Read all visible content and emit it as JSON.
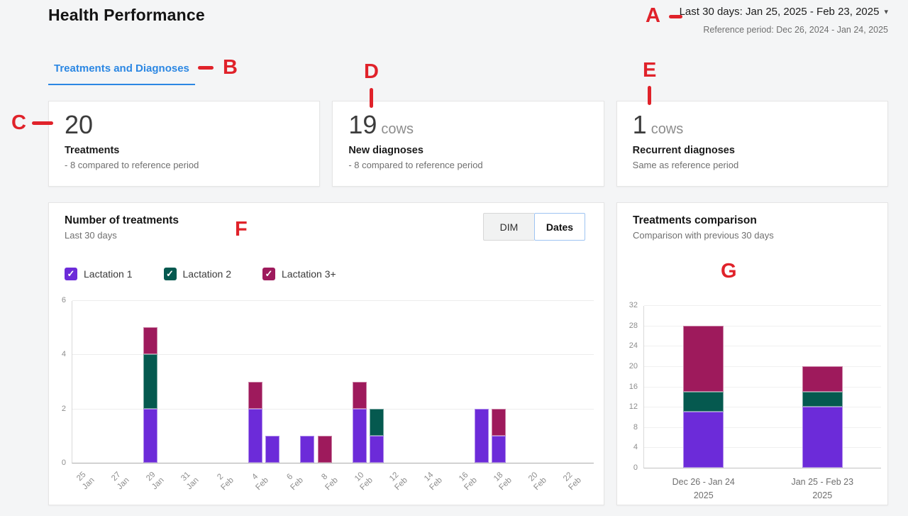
{
  "page": {
    "title": "Health Performance",
    "background": "#f4f5f6"
  },
  "header": {
    "period_selector_label": "Last 30 days: Jan 25, 2025 - Feb 23, 2025",
    "caret_icon": "▾",
    "reference_period_label": "Reference period: Dec 26, 2024 - Jan 24, 2025"
  },
  "tabs": [
    {
      "label": "Treatments and Diagnoses",
      "active": true
    }
  ],
  "kpi_cards": [
    {
      "value": "20",
      "unit": "",
      "label": "Treatments",
      "comparison": "- 8 compared to reference period"
    },
    {
      "value": "19",
      "unit": "cows",
      "label": "New diagnoses",
      "comparison": "- 8 compared to reference period"
    },
    {
      "value": "1",
      "unit": "cows",
      "label": "Recurrent diagnoses",
      "comparison": "Same as reference period"
    }
  ],
  "treatments_panel": {
    "title": "Number of treatments",
    "subtitle": "Last 30 days",
    "toggle_options": [
      {
        "label": "DIM",
        "selected": false
      },
      {
        "label": "Dates",
        "selected": true
      }
    ],
    "legend": [
      {
        "label": "Lactation 1",
        "color": "#6c2bd9",
        "checked": true,
        "check_glyph": "✓"
      },
      {
        "label": "Lactation 2",
        "color": "#05594f",
        "checked": true,
        "check_glyph": "✓"
      },
      {
        "label": "Lactation 3+",
        "color": "#9e1a5c",
        "checked": true,
        "check_glyph": "✓"
      }
    ]
  },
  "comparison_panel": {
    "title": "Treatments comparison",
    "subtitle": "Comparison with previous 30 days"
  },
  "annotations": {
    "color": "#e0222a",
    "items": [
      {
        "letter": "A"
      },
      {
        "letter": "B"
      },
      {
        "letter": "C"
      },
      {
        "letter": "D"
      },
      {
        "letter": "E"
      },
      {
        "letter": "F"
      },
      {
        "letter": "G"
      }
    ]
  },
  "chart_data": [
    {
      "type": "bar",
      "stacked": true,
      "title": "Number of treatments",
      "subtitle": "Last 30 days",
      "series_names": [
        "Lactation 1",
        "Lactation 2",
        "Lactation 3+"
      ],
      "colors": [
        "#6c2bd9",
        "#05594f",
        "#9e1a5c"
      ],
      "x_start": "25 Jan",
      "x_end": "23 Feb",
      "days_span": 30,
      "ylim": [
        0,
        6
      ],
      "y_ticks": [
        0,
        2,
        4,
        6
      ],
      "grid": true,
      "x_tick_labels": [
        {
          "day": "25",
          "month": "Jan",
          "day_index": 0
        },
        {
          "day": "27",
          "month": "Jan",
          "day_index": 2
        },
        {
          "day": "29",
          "month": "Jan",
          "day_index": 4
        },
        {
          "day": "31",
          "month": "Jan",
          "day_index": 6
        },
        {
          "day": "2",
          "month": "Feb",
          "day_index": 8
        },
        {
          "day": "4",
          "month": "Feb",
          "day_index": 10
        },
        {
          "day": "6",
          "month": "Feb",
          "day_index": 12
        },
        {
          "day": "8",
          "month": "Feb",
          "day_index": 14
        },
        {
          "day": "10",
          "month": "Feb",
          "day_index": 16
        },
        {
          "day": "12",
          "month": "Feb",
          "day_index": 18
        },
        {
          "day": "14",
          "month": "Feb",
          "day_index": 20
        },
        {
          "day": "16",
          "month": "Feb",
          "day_index": 22
        },
        {
          "day": "18",
          "month": "Feb",
          "day_index": 24
        },
        {
          "day": "20",
          "month": "Feb",
          "day_index": 26
        },
        {
          "day": "22",
          "month": "Feb",
          "day_index": 28
        }
      ],
      "bars": [
        {
          "date": "29 Jan",
          "day_index": 4,
          "values": [
            2,
            2,
            1
          ]
        },
        {
          "date": "4 Feb",
          "day_index": 10,
          "values": [
            2,
            0,
            1
          ]
        },
        {
          "date": "5 Feb",
          "day_index": 11,
          "values": [
            1,
            0,
            0
          ]
        },
        {
          "date": "7 Feb",
          "day_index": 13,
          "values": [
            1,
            0,
            0
          ]
        },
        {
          "date": "8 Feb",
          "day_index": 14,
          "values": [
            0,
            0,
            1
          ]
        },
        {
          "date": "10 Feb",
          "day_index": 16,
          "values": [
            2,
            0,
            1
          ]
        },
        {
          "date": "11 Feb",
          "day_index": 17,
          "values": [
            1,
            1,
            0
          ]
        },
        {
          "date": "17 Feb",
          "day_index": 23,
          "values": [
            2,
            0,
            0
          ]
        },
        {
          "date": "18 Feb",
          "day_index": 24,
          "values": [
            1,
            0,
            1
          ]
        }
      ]
    },
    {
      "type": "bar",
      "stacked": true,
      "title": "Treatments comparison",
      "subtitle": "Comparison with previous 30 days",
      "categories": [
        {
          "line1": "Dec 26 - Jan 24",
          "line2": "2025"
        },
        {
          "line1": "Jan 25 - Feb 23",
          "line2": "2025"
        }
      ],
      "series": [
        {
          "name": "Lactation 1",
          "values": [
            11,
            12
          ]
        },
        {
          "name": "Lactation 2",
          "values": [
            4,
            3
          ]
        },
        {
          "name": "Lactation 3+",
          "values": [
            13,
            5
          ]
        }
      ],
      "totals": [
        28,
        20
      ],
      "colors": [
        "#6c2bd9",
        "#05594f",
        "#9e1a5c"
      ],
      "ylim": [
        0,
        32
      ],
      "y_ticks": [
        0,
        4,
        8,
        12,
        16,
        20,
        24,
        28,
        32
      ],
      "grid": true
    }
  ]
}
